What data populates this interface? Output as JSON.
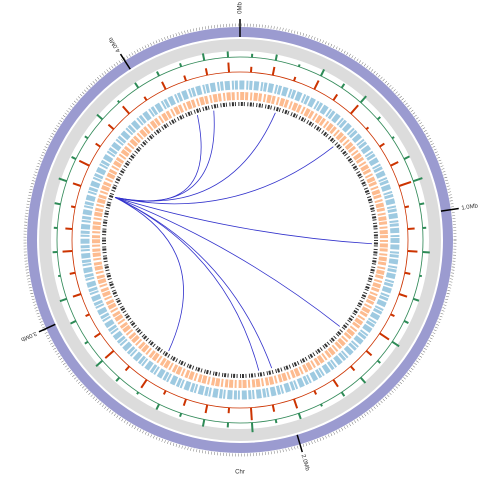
{
  "chart_data": {
    "type": "circos",
    "chromosome_label": "Chr",
    "xlim": [
      0,
      4.4
    ],
    "xticks": [
      {
        "value": 0,
        "label": "0Mb"
      },
      {
        "value": 1,
        "label": "1.0Mb"
      },
      {
        "value": 2,
        "label": "2.0Mb"
      },
      {
        "value": 3,
        "label": "3.0Mb"
      },
      {
        "value": 4,
        "label": "4.0Mb"
      }
    ],
    "ideogram_color": "#9b9bd0",
    "tracks": [
      {
        "name_id": "gc",
        "color": "#2e8b57",
        "ylim": [
          0,
          10
        ],
        "values": [
          3,
          5,
          2,
          6,
          4,
          7,
          3,
          2,
          5,
          8,
          4,
          3,
          6,
          2,
          5,
          4,
          7,
          3,
          6,
          4,
          2,
          5,
          3,
          8,
          4,
          6,
          3,
          5,
          2,
          4,
          7,
          3,
          5,
          6,
          2,
          4,
          3,
          5,
          7,
          4,
          3,
          6,
          2,
          5,
          4,
          3,
          6,
          5
        ]
      },
      {
        "name_id": "skew",
        "color": "#cc3300",
        "ylim": [
          0,
          10
        ],
        "values": [
          4,
          6,
          3,
          7,
          5,
          8,
          2,
          4,
          6,
          9,
          3,
          5,
          7,
          4,
          6,
          3,
          8,
          5,
          4,
          6,
          3,
          7,
          5,
          9,
          4,
          6,
          5,
          3,
          7,
          4,
          8,
          5,
          3,
          6,
          4,
          7,
          5,
          3,
          6,
          8,
          4,
          5,
          7,
          3,
          6,
          4,
          5,
          7
        ]
      }
    ],
    "link_color": "#3333cc",
    "links": [
      {
        "source": 3.53,
        "target": 4.17
      },
      {
        "source": 3.53,
        "target": 4.26
      },
      {
        "source": 3.53,
        "target": 0.19
      },
      {
        "source": 3.53,
        "target": 0.55
      },
      {
        "source": 3.53,
        "target": 1.12
      },
      {
        "source": 3.53,
        "target": 1.6
      },
      {
        "source": 3.53,
        "target": 2.03
      },
      {
        "source": 3.53,
        "target": 2.1
      },
      {
        "source": 3.53,
        "target": 2.6
      }
    ]
  }
}
